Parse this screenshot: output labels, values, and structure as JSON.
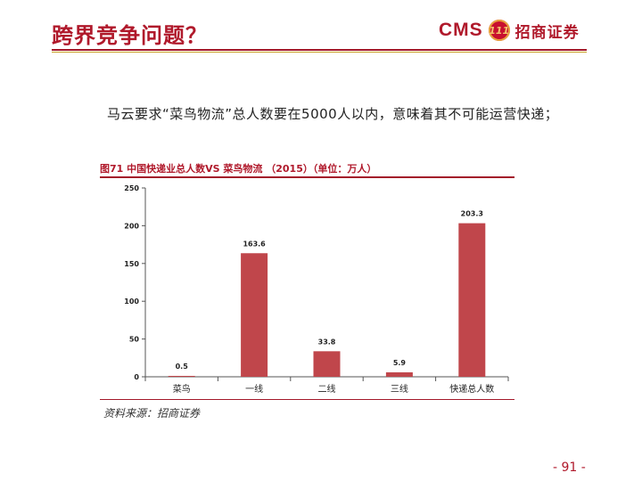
{
  "header": {
    "title": "跨界竞争问题？",
    "logo_text": "CMS",
    "logo_emblem_text": "111",
    "logo_cn": "招商证券"
  },
  "statement": "马云要求“菜鸟物流”总人数要在5000人以内，意味着其不可能运营快递；",
  "chart_caption": "图71 中国快递业总人数VS 菜鸟物流 （2015）（单位：万人）",
  "source": "资料来源：招商证券",
  "page_number": "- 91 -",
  "colors": {
    "brand": "#b0192b",
    "bar": "#c0464b",
    "gold": "#c9a227"
  },
  "chart_data": {
    "type": "bar",
    "title": "图71 中国快递业总人数VS 菜鸟物流 （2015）（单位：万人）",
    "categories": [
      "菜鸟",
      "一线",
      "二线",
      "三线",
      "快递总人数"
    ],
    "values": [
      0.5,
      163.6,
      33.8,
      5.9,
      203.3
    ],
    "value_labels": [
      "0.5",
      "163.6",
      "33.8",
      "5.9",
      "203.3"
    ],
    "ylim": [
      0,
      250
    ],
    "yticks": [
      0,
      50,
      100,
      150,
      200,
      250
    ],
    "grid": false,
    "legend": "none"
  }
}
